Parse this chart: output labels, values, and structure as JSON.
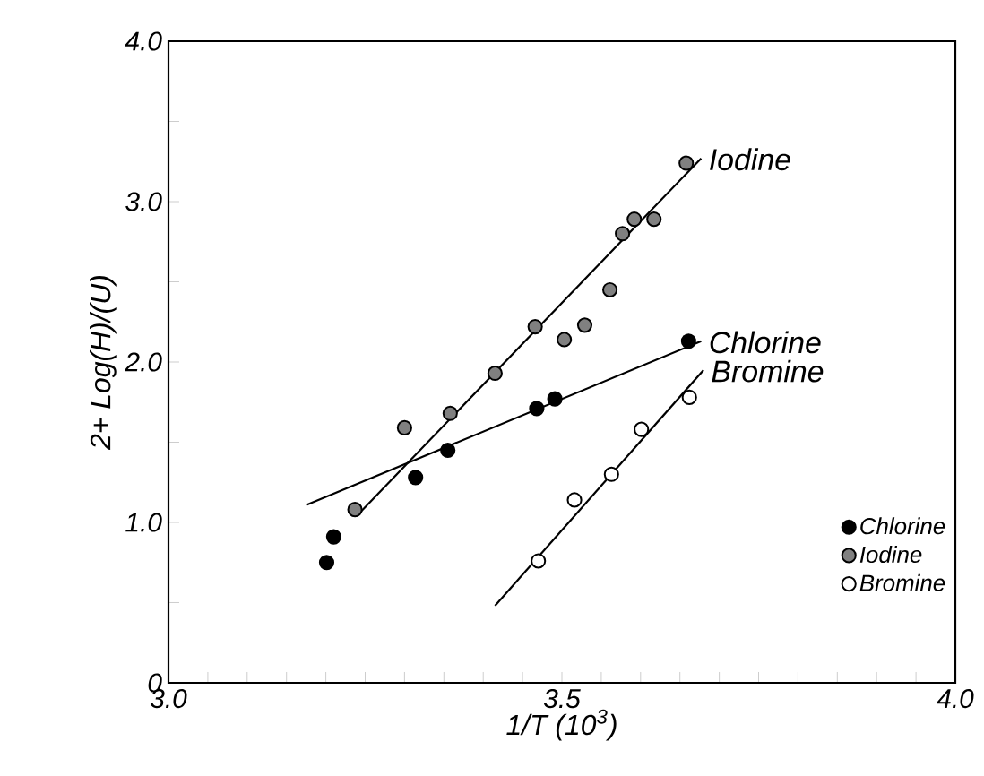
{
  "chart_data": {
    "type": "scatter",
    "xlabel": "1/T (10$^{3}$)",
    "ylabel": "2+ Log(H)/(U)",
    "xlim": [
      3.0,
      4.0
    ],
    "ylim": [
      0,
      4.0
    ],
    "xticks": [
      {
        "value": 3.0,
        "label": "3.0"
      },
      {
        "value": 3.05,
        "label": null
      },
      {
        "value": 3.1,
        "label": null
      },
      {
        "value": 3.15,
        "label": null
      },
      {
        "value": 3.2,
        "label": null
      },
      {
        "value": 3.25,
        "label": null
      },
      {
        "value": 3.3,
        "label": null
      },
      {
        "value": 3.35,
        "label": null
      },
      {
        "value": 3.4,
        "label": null
      },
      {
        "value": 3.45,
        "label": null
      },
      {
        "value": 3.5,
        "label": "3.5"
      },
      {
        "value": 3.55,
        "label": null
      },
      {
        "value": 3.6,
        "label": null
      },
      {
        "value": 3.65,
        "label": null
      },
      {
        "value": 3.7,
        "label": null
      },
      {
        "value": 3.75,
        "label": null
      },
      {
        "value": 3.8,
        "label": null
      },
      {
        "value": 3.85,
        "label": null
      },
      {
        "value": 3.9,
        "label": null
      },
      {
        "value": 3.95,
        "label": null
      },
      {
        "value": 4.0,
        "label": "4.0"
      }
    ],
    "yticks": [
      {
        "value": 0,
        "label": "0"
      },
      {
        "value": 0.5,
        "label": null
      },
      {
        "value": 1.0,
        "label": "1.0"
      },
      {
        "value": 1.5,
        "label": null
      },
      {
        "value": 2.0,
        "label": "2.0"
      },
      {
        "value": 2.5,
        "label": null
      },
      {
        "value": 3.0,
        "label": "3.0"
      },
      {
        "value": 3.5,
        "label": null
      },
      {
        "value": 4.0,
        "label": "4.0"
      }
    ],
    "grid": false,
    "legend": "bottom right",
    "marker": "circle",
    "series": [
      {
        "name": "Chlorine",
        "color": "#000000",
        "x": [
          3.201,
          3.21,
          3.314,
          3.355,
          3.468,
          3.491,
          3.661
        ],
        "values": [
          0.75,
          0.91,
          1.28,
          1.45,
          1.71,
          1.77,
          2.13
        ]
      },
      {
        "name": "Iodine",
        "color": "#808080",
        "x": [
          3.237,
          3.3,
          3.358,
          3.415,
          3.466,
          3.503,
          3.529,
          3.561,
          3.577,
          3.592,
          3.617,
          3.658
        ],
        "values": [
          1.08,
          1.59,
          1.68,
          1.93,
          2.22,
          2.14,
          2.23,
          2.45,
          2.8,
          2.89,
          2.89,
          3.24
        ]
      },
      {
        "name": "Bromine",
        "color": "#ffffff",
        "x": [
          3.47,
          3.516,
          3.563,
          3.601,
          3.662
        ],
        "values": [
          0.76,
          1.14,
          1.3,
          1.58,
          1.78
        ]
      },
      {
        "name": "Iodine",
        "type": "line",
        "marker": "none",
        "color": "#000000",
        "x": [
          3.245,
          3.677
        ],
        "values": [
          1.07,
          3.27
        ]
      },
      {
        "name": "Chlorine",
        "type": "line",
        "marker": "none",
        "color": "#000000",
        "x": [
          3.176,
          3.677
        ],
        "values": [
          1.11,
          2.13
        ]
      },
      {
        "name": "Bromine",
        "type": "line",
        "marker": "none",
        "color": "#000000",
        "x": [
          3.415,
          3.68
        ],
        "values": [
          0.48,
          1.95
        ]
      }
    ]
  }
}
